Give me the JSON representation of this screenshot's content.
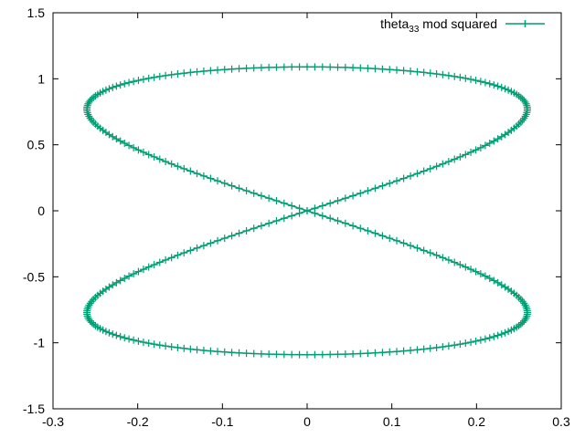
{
  "chart_data": {
    "type": "line",
    "legend": {
      "label_base": "theta",
      "label_sub": "33",
      "label_rest": " mod squared",
      "placement": "top-right"
    },
    "series_color": "#009e73",
    "marker": "plus",
    "xlim": [
      -0.3,
      0.3
    ],
    "ylim": [
      -1.5,
      1.5
    ],
    "xticks": [
      -0.3,
      -0.2,
      -0.1,
      0,
      0.1,
      0.2,
      0.3
    ],
    "yticks": [
      -1.5,
      -1,
      -0.5,
      0,
      0.5,
      1,
      1.5
    ],
    "xtick_labels": [
      "-0.3",
      "-0.2",
      "-0.1",
      "0",
      "0.1",
      "0.2",
      "0.3"
    ],
    "ytick_labels": [
      "-1.5",
      "-1",
      "-0.5",
      "0",
      "0.5",
      "1",
      "1.5"
    ],
    "grid": false,
    "curve": {
      "shape": "figure-eight (lemniscate-like) parametric curve",
      "x_extent": [
        -0.26,
        0.26
      ],
      "y_extent": [
        -1.09,
        1.09
      ],
      "max_x_at_y": 0.62,
      "crossing_point": [
        0,
        0
      ],
      "point_count": 360
    }
  }
}
